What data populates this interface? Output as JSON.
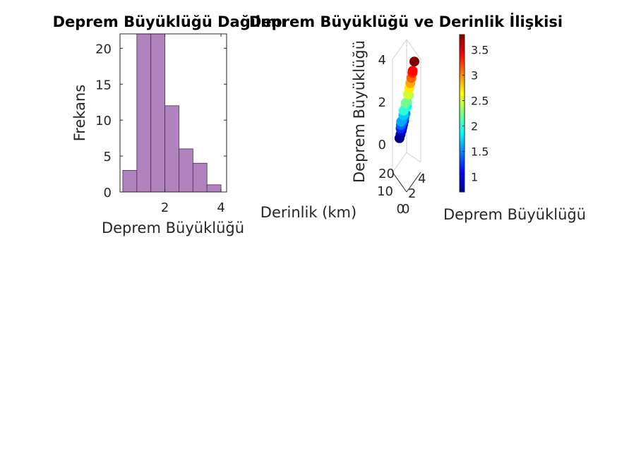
{
  "chart_data": [
    {
      "type": "bar",
      "title": "Deprem Büyüklüğü Dağılımı",
      "xlabel": "Deprem Büyüklüğü",
      "ylabel": "Frekans",
      "bin_edges": [
        0.5,
        1.0,
        1.5,
        2.0,
        2.5,
        3.0,
        3.5,
        4.0
      ],
      "values": [
        3,
        23,
        22,
        12,
        6,
        4,
        1
      ],
      "xlim": [
        0.4,
        4.2
      ],
      "ylim": [
        0,
        22
      ],
      "xticks": [
        "2",
        "4"
      ],
      "yticks": [
        "0",
        "5",
        "10",
        "15",
        "20"
      ],
      "bar_color": "#b083be",
      "edge_color": "#4a2a5a"
    },
    {
      "type": "scatter",
      "title": "Deprem Büyüklüğü ve Derinlik İlişkisi",
      "xlabel": "Derinlik (km)",
      "ylabel": "Deprem Büyüklüğü",
      "colorbar_label": "Deprem Büyüklüğü",
      "view": "3d",
      "zticks": [
        "0",
        "2",
        "4"
      ],
      "depth_ticks": [
        "20",
        "10",
        "0"
      ],
      "mag_ticks": [
        "0",
        "2",
        "4"
      ],
      "colorbar_ticks": [
        "1",
        "1.5",
        "2",
        "2.5",
        "3",
        "3.5"
      ],
      "clim": [
        0.7,
        3.8
      ],
      "colormap": "jet",
      "points": [
        {
          "depth": 14,
          "magnitude": 0.7
        },
        {
          "depth": 12,
          "magnitude": 0.8
        },
        {
          "depth": 10,
          "magnitude": 0.9
        },
        {
          "depth": 9,
          "magnitude": 1.0
        },
        {
          "depth": 8,
          "magnitude": 1.1
        },
        {
          "depth": 15,
          "magnitude": 1.2
        },
        {
          "depth": 6,
          "magnitude": 1.2
        },
        {
          "depth": 11,
          "magnitude": 1.3
        },
        {
          "depth": 16,
          "magnitude": 1.4
        },
        {
          "depth": 7,
          "magnitude": 1.4
        },
        {
          "depth": 13,
          "magnitude": 1.5
        },
        {
          "depth": 5,
          "magnitude": 1.5
        },
        {
          "depth": 9,
          "magnitude": 1.6
        },
        {
          "depth": 17,
          "magnitude": 1.6
        },
        {
          "depth": 12,
          "magnitude": 1.7
        },
        {
          "depth": 4,
          "magnitude": 1.8
        },
        {
          "depth": 8,
          "magnitude": 1.9
        },
        {
          "depth": 14,
          "magnitude": 2.0
        },
        {
          "depth": 6,
          "magnitude": 2.1
        },
        {
          "depth": 10,
          "magnitude": 2.2
        },
        {
          "depth": 3,
          "magnitude": 2.3
        },
        {
          "depth": 7,
          "magnitude": 2.5
        },
        {
          "depth": 5,
          "magnitude": 2.7
        },
        {
          "depth": 4,
          "magnitude": 2.9
        },
        {
          "depth": 3,
          "magnitude": 3.1
        },
        {
          "depth": 2,
          "magnitude": 3.3
        },
        {
          "depth": 2,
          "magnitude": 3.4
        },
        {
          "depth": 1,
          "magnitude": 3.8
        }
      ]
    }
  ]
}
